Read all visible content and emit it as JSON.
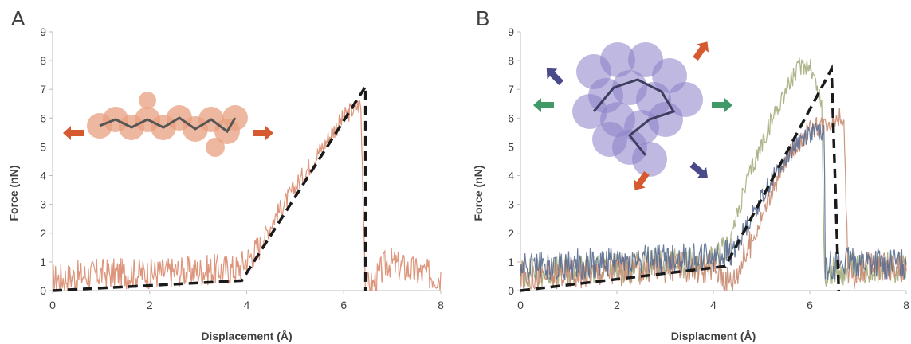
{
  "chart_data": [
    {
      "panel_label": "A",
      "type": "line",
      "xlabel": "Displacement (Å)",
      "ylabel": "Force (nN)",
      "xlim": [
        0,
        8
      ],
      "ylim": [
        0,
        9
      ],
      "x_ticks": [
        "0",
        "2",
        "4",
        "6",
        "8"
      ],
      "y_ticks": [
        "0",
        "1",
        "2",
        "3",
        "4",
        "5",
        "6",
        "7",
        "8",
        "9"
      ],
      "grid": false,
      "colors": {
        "trace": "#d98a6e",
        "fit": "#1a1a1a",
        "arrow": "#d65a30",
        "molecule": "#e8a080"
      },
      "fit_line": {
        "x": [
          0,
          3.9,
          6.45,
          6.45
        ],
        "y": [
          0,
          0.35,
          7.1,
          0
        ]
      },
      "series": [
        {
          "color": "#d98a6e",
          "x": [
            0,
            0.5,
            1,
            1.5,
            2,
            2.5,
            3,
            3.5,
            3.8,
            4.2,
            4.6,
            5,
            5.4,
            5.8,
            6.1,
            6.35,
            6.45,
            6.6,
            6.9,
            7.2,
            7.6,
            8
          ],
          "y": [
            0.4,
            0.5,
            0.6,
            0.6,
            0.6,
            0.65,
            0.7,
            0.75,
            0.75,
            1.4,
            2.6,
            3.6,
            4.6,
            5.6,
            6.2,
            6.5,
            0.1,
            0.2,
            1.0,
            0.8,
            0.6,
            0.5
          ]
        }
      ]
    },
    {
      "panel_label": "B",
      "type": "line",
      "xlabel": "Displacment (Å)",
      "ylabel": "Force (nN)",
      "xlim": [
        0,
        8
      ],
      "ylim": [
        0,
        9
      ],
      "x_ticks": [
        "0",
        "2",
        "4",
        "6",
        "8"
      ],
      "y_ticks": [
        "0",
        "1",
        "2",
        "3",
        "4",
        "5",
        "6",
        "7",
        "8",
        "9"
      ],
      "grid": false,
      "colors": {
        "fit": "#1a1a1a",
        "molecule": "#8a7fc9"
      },
      "arrows": [
        {
          "color": "#d65a30"
        },
        {
          "color": "#4a4a8a"
        },
        {
          "color": "#3f9a68"
        },
        {
          "color": "#3f9a68"
        },
        {
          "color": "#d65a30"
        },
        {
          "color": "#4a4a8a"
        }
      ],
      "fit_line": {
        "x": [
          0,
          4.25,
          6.45,
          6.6
        ],
        "y": [
          0,
          0.85,
          7.7,
          0
        ]
      },
      "series": [
        {
          "color": "#a3ad7c",
          "x": [
            0,
            1,
            2,
            3,
            4,
            4.3,
            4.7,
            5.1,
            5.5,
            5.8,
            6.0,
            6.25,
            6.3,
            7,
            8
          ],
          "y": [
            0.6,
            0.7,
            0.8,
            0.9,
            1.0,
            1.5,
            3.8,
            5.5,
            7.0,
            7.8,
            7.9,
            6.5,
            0.6,
            0.8,
            0.8
          ]
        },
        {
          "color": "#c98a70",
          "x": [
            0,
            1,
            2,
            3,
            4,
            4.4,
            4.8,
            5.2,
            5.6,
            6.0,
            6.4,
            6.7,
            6.8,
            7.2,
            8
          ],
          "y": [
            0.5,
            0.6,
            0.7,
            0.8,
            0.8,
            0.3,
            1.7,
            3.4,
            4.8,
            5.6,
            5.9,
            6.1,
            0.5,
            0.8,
            0.7
          ]
        },
        {
          "color": "#5a6d90",
          "x": [
            0,
            1,
            2,
            3,
            4,
            4.4,
            4.8,
            5.2,
            5.6,
            5.9,
            6.1,
            6.3,
            6.32,
            7,
            8
          ],
          "y": [
            0.8,
            0.9,
            1.0,
            1.1,
            1.2,
            1.3,
            2.6,
            3.8,
            4.9,
            5.4,
            5.5,
            5.6,
            0.9,
            1.0,
            0.9
          ]
        }
      ]
    }
  ]
}
